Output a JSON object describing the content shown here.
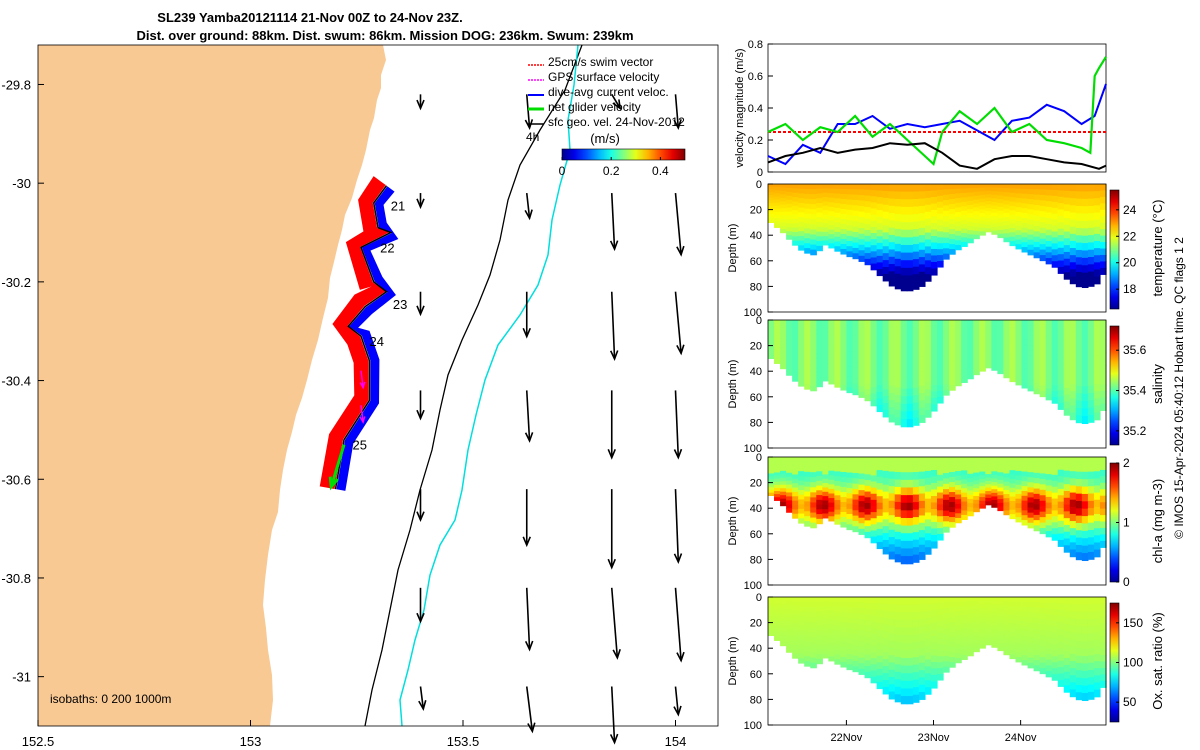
{
  "title": {
    "line1": "SL239 Yamba20121114 21-Nov 00Z to 24-Nov 23Z.",
    "line2": "Dist. over ground: 88km. Dist. swum: 86km. Mission DOG: 236km. Swum: 239km"
  },
  "side_label": "© IMOS 15-Apr-2024 05:40:12 Hobart time. QC flags 1  2",
  "colors": {
    "land": "#f9c994",
    "swim": "#ff0000",
    "gps": "#ff00ff",
    "dive": "#0000ff",
    "net": "#00dd00",
    "sfc": "#000000",
    "isobath200": "#000000",
    "isobath1000": "#00dede"
  },
  "chart_data": [
    {
      "type": "map",
      "name": "glider-track-map",
      "xlim": [
        152.5,
        154.1
      ],
      "ylim": [
        -31.1,
        -29.72
      ],
      "x_ticks": [
        "152.5",
        "153",
        "153.5",
        "154"
      ],
      "x_tick_values": [
        152.5,
        153,
        153.5,
        154
      ],
      "y_ticks": [
        "-29.8",
        "-30",
        "-30.2",
        "-30.4",
        "-30.6",
        "-30.8",
        "-31"
      ],
      "y_tick_values": [
        -29.8,
        -30,
        -30.2,
        -30.4,
        -30.6,
        -30.8,
        -31
      ],
      "legend": [
        "25cm/s swim vector",
        "GPS surface velocity",
        "dive-avg current veloc.",
        "net glider velocity",
        "sfc geo. vel. 24-Nov-2012"
      ],
      "legend_extra": "4h",
      "colorbar": {
        "label": "(m/s)",
        "ticks": [
          "0",
          "0.2",
          "0.4"
        ],
        "tick_values": [
          0,
          0.2,
          0.4
        ],
        "range": [
          0,
          0.5
        ]
      },
      "isobaths_label": "isobaths: 0   200  1000m",
      "day_labels": [
        {
          "text": "21",
          "lon": 153.33,
          "lat": -30.055
        },
        {
          "text": "22",
          "lon": 153.305,
          "lat": -30.14
        },
        {
          "text": "23",
          "lon": 153.335,
          "lat": -30.255
        },
        {
          "text": "24",
          "lon": 153.28,
          "lat": -30.33
        },
        {
          "text": "25",
          "lon": 153.24,
          "lat": -30.54
        }
      ],
      "track": [
        [
          153.32,
          -30.005
        ],
        [
          153.29,
          -30.04
        ],
        [
          153.3,
          -30.09
        ],
        [
          153.33,
          -30.1
        ],
        [
          153.26,
          -30.13
        ],
        [
          153.29,
          -30.2
        ],
        [
          153.32,
          -30.22
        ],
        [
          153.27,
          -30.25
        ],
        [
          153.23,
          -30.29
        ],
        [
          153.26,
          -30.31
        ],
        [
          153.28,
          -30.36
        ],
        [
          153.28,
          -30.44
        ],
        [
          153.22,
          -30.52
        ],
        [
          153.2,
          -30.62
        ]
      ],
      "net_velocity": {
        "lon": 153.22,
        "lat": -30.53,
        "dlon": -0.03,
        "dlat": -0.085
      },
      "gps_velocity": [
        {
          "lon": 153.26,
          "lat": -30.38,
          "dlon": 0.005,
          "dlat": -0.04
        },
        {
          "lon": 153.26,
          "lat": -30.45,
          "dlon": 0.005,
          "dlat": -0.04
        }
      ],
      "surface_velocity": [
        {
          "lon": 153.4,
          "lat": -29.82,
          "u": 0.0,
          "v": -0.05
        },
        {
          "lon": 153.65,
          "lat": -29.82,
          "u": 0.01,
          "v": -0.12
        },
        {
          "lon": 153.85,
          "lat": -29.82,
          "u": 0.03,
          "v": -0.05
        },
        {
          "lon": 154.0,
          "lat": -29.82,
          "u": 0.01,
          "v": -0.12
        },
        {
          "lon": 153.4,
          "lat": -30.02,
          "u": 0.0,
          "v": -0.05
        },
        {
          "lon": 153.65,
          "lat": -30.02,
          "u": 0.01,
          "v": -0.09
        },
        {
          "lon": 153.85,
          "lat": -30.02,
          "u": 0.01,
          "v": -0.2
        },
        {
          "lon": 154.0,
          "lat": -30.02,
          "u": 0.02,
          "v": -0.22
        },
        {
          "lon": 153.4,
          "lat": -30.22,
          "u": 0.0,
          "v": -0.08
        },
        {
          "lon": 153.65,
          "lat": -30.22,
          "u": 0.0,
          "v": -0.16
        },
        {
          "lon": 153.85,
          "lat": -30.22,
          "u": 0.01,
          "v": -0.24
        },
        {
          "lon": 154.0,
          "lat": -30.22,
          "u": 0.02,
          "v": -0.22
        },
        {
          "lon": 153.4,
          "lat": -30.42,
          "u": 0.0,
          "v": -0.1
        },
        {
          "lon": 153.65,
          "lat": -30.42,
          "u": 0.01,
          "v": -0.18
        },
        {
          "lon": 153.85,
          "lat": -30.42,
          "u": 0.0,
          "v": -0.24
        },
        {
          "lon": 154.0,
          "lat": -30.42,
          "u": 0.01,
          "v": -0.24
        },
        {
          "lon": 153.4,
          "lat": -30.62,
          "u": 0.0,
          "v": -0.11
        },
        {
          "lon": 153.65,
          "lat": -30.62,
          "u": 0.0,
          "v": -0.2
        },
        {
          "lon": 153.85,
          "lat": -30.62,
          "u": 0.0,
          "v": -0.28
        },
        {
          "lon": 154.0,
          "lat": -30.62,
          "u": 0.01,
          "v": -0.26
        },
        {
          "lon": 153.4,
          "lat": -30.82,
          "u": 0.0,
          "v": -0.12
        },
        {
          "lon": 153.65,
          "lat": -30.82,
          "u": 0.01,
          "v": -0.22
        },
        {
          "lon": 153.85,
          "lat": -30.82,
          "u": 0.02,
          "v": -0.25
        },
        {
          "lon": 154.0,
          "lat": -30.82,
          "u": 0.02,
          "v": -0.26
        },
        {
          "lon": 153.4,
          "lat": -31.02,
          "u": 0.01,
          "v": -0.08
        },
        {
          "lon": 153.65,
          "lat": -31.02,
          "u": 0.02,
          "v": -0.16
        },
        {
          "lon": 153.85,
          "lat": -31.02,
          "u": 0.01,
          "v": -0.2
        },
        {
          "lon": 154.0,
          "lat": -31.02,
          "u": 0.01,
          "v": -0.1
        }
      ]
    },
    {
      "type": "line",
      "name": "velocity-magnitude-panel",
      "ylabel": "velocity magnitude (m/s)",
      "xlim": [
        21.1,
        24.98
      ],
      "ylim": [
        0,
        0.8
      ],
      "y_ticks": [
        "0",
        "0.2",
        "0.4",
        "0.6",
        "0.8"
      ],
      "y_tick_values": [
        0,
        0.2,
        0.4,
        0.6,
        0.8
      ],
      "series": [
        {
          "name": "swim",
          "color": "#ff0000",
          "dashed": true,
          "x": [
            21.1,
            24.98
          ],
          "y": [
            0.25,
            0.25
          ]
        },
        {
          "name": "dive-avg",
          "color": "#0000ff",
          "x": [
            21.1,
            21.3,
            21.5,
            21.7,
            21.9,
            22.1,
            22.3,
            22.5,
            22.7,
            22.9,
            23.1,
            23.3,
            23.5,
            23.7,
            23.9,
            24.1,
            24.3,
            24.5,
            24.7,
            24.85,
            24.98
          ],
          "y": [
            0.1,
            0.05,
            0.17,
            0.12,
            0.3,
            0.3,
            0.35,
            0.27,
            0.3,
            0.28,
            0.3,
            0.32,
            0.26,
            0.2,
            0.32,
            0.34,
            0.42,
            0.38,
            0.3,
            0.35,
            0.55
          ]
        },
        {
          "name": "net",
          "color": "#00dd00",
          "x": [
            21.1,
            21.3,
            21.5,
            21.7,
            21.9,
            22.1,
            22.3,
            22.5,
            22.7,
            22.9,
            23.0,
            23.1,
            23.3,
            23.5,
            23.7,
            23.9,
            24.1,
            24.3,
            24.5,
            24.7,
            24.8,
            24.85,
            24.9,
            24.98
          ],
          "y": [
            0.25,
            0.3,
            0.2,
            0.28,
            0.25,
            0.35,
            0.22,
            0.3,
            0.2,
            0.1,
            0.05,
            0.25,
            0.38,
            0.3,
            0.4,
            0.25,
            0.3,
            0.2,
            0.18,
            0.15,
            0.12,
            0.6,
            0.65,
            0.72
          ]
        },
        {
          "name": "sfc",
          "color": "#000000",
          "x": [
            21.1,
            21.3,
            21.5,
            21.7,
            21.9,
            22.1,
            22.3,
            22.5,
            22.7,
            22.9,
            23.1,
            23.3,
            23.5,
            23.7,
            23.9,
            24.1,
            24.3,
            24.5,
            24.7,
            24.9,
            24.98
          ],
          "y": [
            0.06,
            0.1,
            0.12,
            0.15,
            0.12,
            0.14,
            0.15,
            0.18,
            0.17,
            0.18,
            0.12,
            0.04,
            0.02,
            0.08,
            0.1,
            0.1,
            0.08,
            0.06,
            0.05,
            0.02,
            0.04
          ]
        }
      ]
    },
    {
      "type": "heatmap",
      "name": "temperature-section",
      "ylabel": "Depth (m)",
      "cbar_label": "temperature (°C)",
      "cbar_ticks": [
        "18",
        "20",
        "22",
        "24"
      ],
      "cbar_values": [
        18,
        20,
        22,
        24
      ],
      "crange": [
        16.5,
        25.5
      ],
      "ylim": [
        100,
        0
      ],
      "y_ticks": [
        "0",
        "20",
        "40",
        "60",
        "80",
        "100"
      ],
      "y_tick_values": [
        0,
        20,
        40,
        60,
        80,
        100
      ]
    },
    {
      "type": "heatmap",
      "name": "salinity-section",
      "ylabel": "Depth (m)",
      "cbar_label": "salinity",
      "cbar_ticks": [
        "35.2",
        "35.4",
        "35.6"
      ],
      "cbar_values": [
        35.2,
        35.4,
        35.6
      ],
      "crange": [
        35.13,
        35.72
      ],
      "ylim": [
        100,
        0
      ],
      "y_ticks": [
        "0",
        "20",
        "40",
        "60",
        "80",
        "100"
      ],
      "y_tick_values": [
        0,
        20,
        40,
        60,
        80,
        100
      ]
    },
    {
      "type": "heatmap",
      "name": "chlorophyll-section",
      "ylabel": "Depth (m)",
      "cbar_label": "chl-a (mg m-3)",
      "cbar_ticks": [
        "0",
        "1",
        "2"
      ],
      "cbar_values": [
        0,
        1,
        2
      ],
      "crange": [
        0,
        2
      ],
      "ylim": [
        100,
        0
      ],
      "y_ticks": [
        "0",
        "20",
        "40",
        "60",
        "80",
        "100"
      ],
      "y_tick_values": [
        0,
        20,
        40,
        60,
        80,
        100
      ]
    },
    {
      "type": "heatmap",
      "name": "oxygen-section",
      "ylabel": "Depth (m)",
      "cbar_label": "Ox. sat. ratio (%)",
      "cbar_ticks": [
        "50",
        "100",
        "150"
      ],
      "cbar_values": [
        50,
        100,
        150
      ],
      "crange": [
        25,
        175
      ],
      "ylim": [
        100,
        0
      ],
      "y_ticks": [
        "0",
        "20",
        "40",
        "60",
        "80",
        "100"
      ],
      "y_tick_values": [
        0,
        20,
        40,
        60,
        80,
        100
      ],
      "x_ticks": [
        "22Nov",
        "23Nov",
        "24Nov"
      ],
      "x_tick_values": [
        22,
        23,
        24
      ],
      "xlim": [
        21.1,
        24.98
      ]
    }
  ]
}
